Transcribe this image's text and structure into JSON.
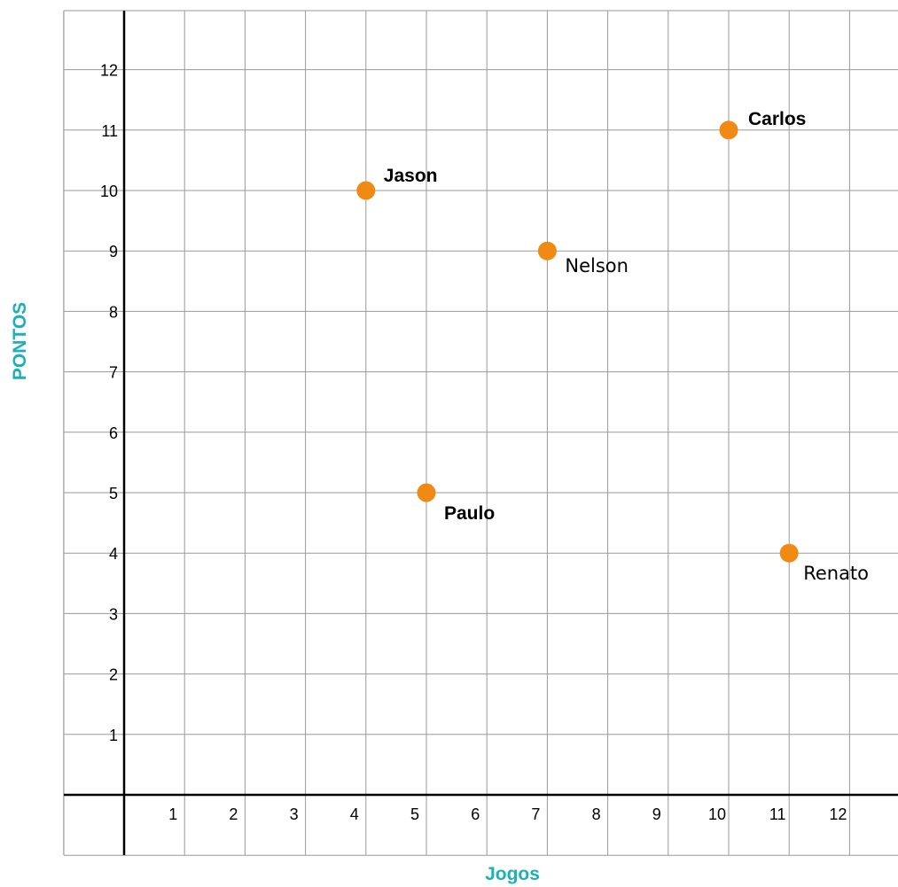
{
  "colors": {
    "point": "#f08a12",
    "grid": "#9a9a9a",
    "axis": "#000000",
    "axis_title": "#1cb0b8"
  },
  "chart_data": {
    "type": "scatter",
    "xlabel": "Jogos",
    "ylabel": "PONTOS",
    "xlim": [
      -1,
      13
    ],
    "ylim": [
      -1,
      13
    ],
    "x_ticks": [
      "1",
      "2",
      "3",
      "4",
      "5",
      "6",
      "7",
      "8",
      "9",
      "10",
      "11",
      "12"
    ],
    "y_ticks": [
      "1",
      "2",
      "3",
      "4",
      "5",
      "6",
      "7",
      "8",
      "9",
      "10",
      "11",
      "12"
    ],
    "grid": true,
    "points": [
      {
        "label": "Jason",
        "x": 4,
        "y": 10,
        "bold": true
      },
      {
        "label": "Carlos",
        "x": 10,
        "y": 11,
        "bold": true
      },
      {
        "label": "Nelson",
        "x": 7,
        "y": 9,
        "bold": false
      },
      {
        "label": "Paulo",
        "x": 5,
        "y": 5,
        "bold": true
      },
      {
        "label": "Renato",
        "x": 11,
        "y": 4,
        "bold": false
      }
    ]
  }
}
